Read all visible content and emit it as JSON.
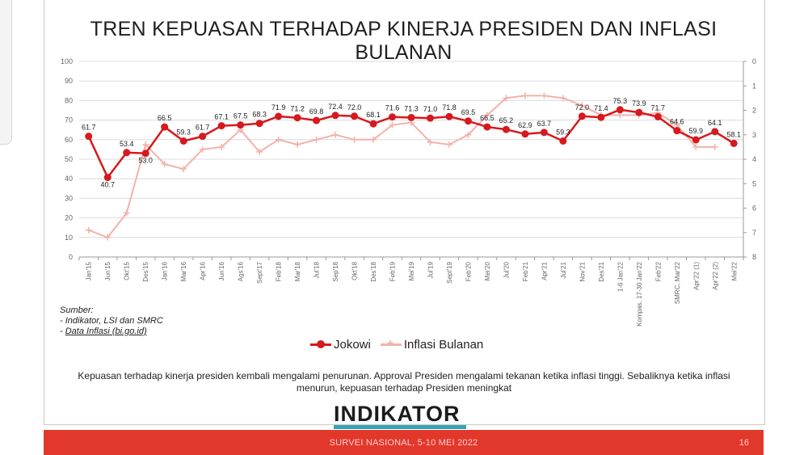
{
  "slide": {
    "title": "TREN KEPUASAN TERHADAP KINERJA PRESIDEN DAN INFLASI BULANAN",
    "source_title": "Sumber:",
    "source_line1": "- Indikator, LSI dan SMRC",
    "source_line2_prefix": "- ",
    "source_line2_link": "Data Inflasi (bi.go.id)",
    "caption": "Kepuasan terhadap kinerja presiden kembali mengalami penurunan. Approval Presiden mengalami tekanan ketika inflasi tinggi. Sebaliknya ketika inflasi menurun, kepuasan terhadap Presiden meningkat",
    "logo_text": "INDIKATOR",
    "footer": "SURVEI NASIONAL, 5-10 MEI 2022",
    "page_number": "16"
  },
  "chart_data": {
    "type": "line",
    "title": "TREN KEPUASAN TERHADAP KINERJA PRESIDEN DAN INFLASI BULANAN",
    "categories": [
      "Jan'15",
      "Jun'15",
      "Okt'15",
      "Des'15",
      "Jan'16",
      "Mar'16",
      "Apr'16",
      "Jun'16",
      "Ags'16",
      "Sept'17",
      "Feb'18",
      "Mar'18",
      "Jul'18",
      "Sep'18",
      "Okt'18",
      "Des'18",
      "Feb'19",
      "Mei'19",
      "Jul'19",
      "Sept'19",
      "Feb'20",
      "Mei'20",
      "Jul'20",
      "Feb'21",
      "Apr'21",
      "Jul'21",
      "Nov'21",
      "Des'21",
      "1-6 Jan'22",
      "Kompas, 17-30 Jan'22",
      "Feb'22",
      "SMRC, Mar'22",
      "Apr'22 (1)",
      "Apr'22 (2)",
      "Mei'22"
    ],
    "left_axis": {
      "ylim": [
        0,
        100
      ],
      "ticks": [
        0,
        10,
        20,
        30,
        40,
        50,
        60,
        70,
        80,
        90,
        100
      ]
    },
    "right_axis": {
      "ylim": [
        8,
        0
      ],
      "ticks": [
        0,
        1,
        2,
        3,
        4,
        5,
        6,
        7,
        8
      ],
      "inverted": true
    },
    "legend_position": "bottom",
    "grid": true,
    "series": [
      {
        "name": "Jokowi",
        "color": "#d6191e",
        "axis": "left",
        "values": [
          61.7,
          40.7,
          53.4,
          53.0,
          66.5,
          59.3,
          61.7,
          67.1,
          67.5,
          68.3,
          71.9,
          71.2,
          69.8,
          72.4,
          72.0,
          68.1,
          71.6,
          71.3,
          71.0,
          71.8,
          69.5,
          66.5,
          65.2,
          62.9,
          63.7,
          59.3,
          72.0,
          71.4,
          75.3,
          73.9,
          71.7,
          64.6,
          59.9,
          64.1,
          58.1
        ],
        "labels": [
          "61.7",
          "40.7",
          "53.4",
          "53.0",
          "66.5",
          "59.3",
          "61.7",
          "67.1",
          "67.5",
          "68.3",
          "71.9",
          "71.2",
          "69.8",
          "72.4",
          "72.0",
          "68.1",
          "71.6",
          "71.3",
          "71.0",
          "71.8",
          "69.5",
          "66.5",
          "65.2",
          "62.9",
          "63.7",
          "59.3",
          "72.0",
          "71.4",
          "75.3",
          "73.9",
          "71.7",
          "64.6",
          "59.9",
          "64.1",
          "58.1"
        ]
      },
      {
        "name": "Inflasi Bulanan",
        "color": "#f2b2ab",
        "axis": "right",
        "values": [
          6.9,
          7.2,
          6.2,
          3.4,
          4.2,
          4.4,
          3.6,
          3.5,
          2.8,
          3.7,
          3.2,
          3.4,
          3.2,
          3.0,
          3.2,
          3.2,
          2.6,
          2.5,
          3.3,
          3.4,
          3.0,
          2.2,
          1.5,
          1.4,
          1.4,
          1.5,
          1.8,
          2.2,
          2.2,
          2.2,
          2.1,
          2.6,
          3.5,
          3.5,
          null
        ]
      }
    ]
  }
}
